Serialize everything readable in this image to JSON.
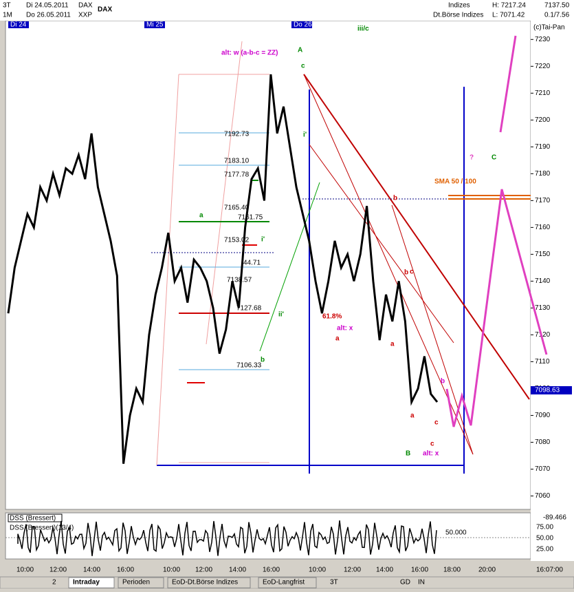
{
  "header": {
    "period": "3T",
    "from": "Di 24.05.2011",
    "symbol": "DAX",
    "resolution": "1M",
    "to": "Do 26.05.2011",
    "exchange": "XXP",
    "title": "DAX",
    "group": "Indizes",
    "index": "Dt.Börse Indizes",
    "high": "H: 7217.24",
    "low": "L: 7071.42",
    "last": "7137.50",
    "change": "0.1/7.56",
    "copyright": "(c)Tai-Pan"
  },
  "days": [
    "Di 24",
    "Mi 25",
    "Do 26"
  ],
  "chart": {
    "ylim": [
      7055,
      7237
    ],
    "yticks": [
      7230,
      7220,
      7210,
      7200,
      7190,
      7180,
      7170,
      7160,
      7150,
      7140,
      7130,
      7120,
      7110,
      7100,
      7090,
      7080,
      7070,
      7060
    ],
    "price": {
      "values": [
        7128,
        7145,
        7155,
        7165,
        7160,
        7175,
        7170,
        7180,
        7172,
        7182,
        7180,
        7187,
        7178,
        7195,
        7175,
        7165,
        7155,
        7142,
        7072,
        7090,
        7100,
        7095,
        7120,
        7135,
        7145,
        7158,
        7140,
        7145,
        7132,
        7148,
        7145,
        7140,
        7130,
        7113,
        7122,
        7140,
        7130,
        7160,
        7178,
        7182,
        7170,
        7217,
        7195,
        7205,
        7190,
        7175,
        7165,
        7155,
        7140,
        7128,
        7140,
        7155,
        7145,
        7150,
        7140,
        7150,
        7168,
        7140,
        7118,
        7135,
        7125,
        7140,
        7125,
        7095,
        7100,
        7112,
        7098,
        7095
      ]
    },
    "last_price": "7098.63",
    "annotations": [
      "iii/c",
      "alt: w (a-b-c = ZZ)",
      "A",
      "c",
      "i'",
      "7192.73",
      "7183.10",
      "7177.78",
      "a",
      "7165.40",
      "7161.75",
      "7153.02",
      "i'",
      "44.71",
      "7138.57",
      "7127.68",
      "ii'",
      "b",
      "7106.33",
      "61.8%",
      "alt: x",
      "a",
      "b",
      "a",
      "b",
      "c",
      "a",
      "c",
      "c",
      "B",
      "alt: x",
      "?",
      "C",
      "SMA 50 / 100",
      "b"
    ]
  },
  "indicator": {
    "name": "DSS (Bressert)",
    "params": "DSS (Bressert)(13/4)",
    "value": "-89.466",
    "level": "50.000",
    "ticks": [
      "75.00",
      "50.00",
      "25.00"
    ]
  },
  "xticks": [
    "10:00",
    "12:00",
    "14:00",
    "16:00",
    "10:00",
    "12:00",
    "14:00",
    "16:00",
    "10:00",
    "12:00",
    "14:00",
    "16:00",
    "18:00",
    "20:00"
  ],
  "clock": "16:07:00",
  "tabs": [
    "Intraday",
    "Perioden",
    "EoD-Dt.Börse Indizes",
    "EoD-Langfrist"
  ],
  "toolbar": [
    "2",
    "3T",
    "GD",
    "IN"
  ]
}
